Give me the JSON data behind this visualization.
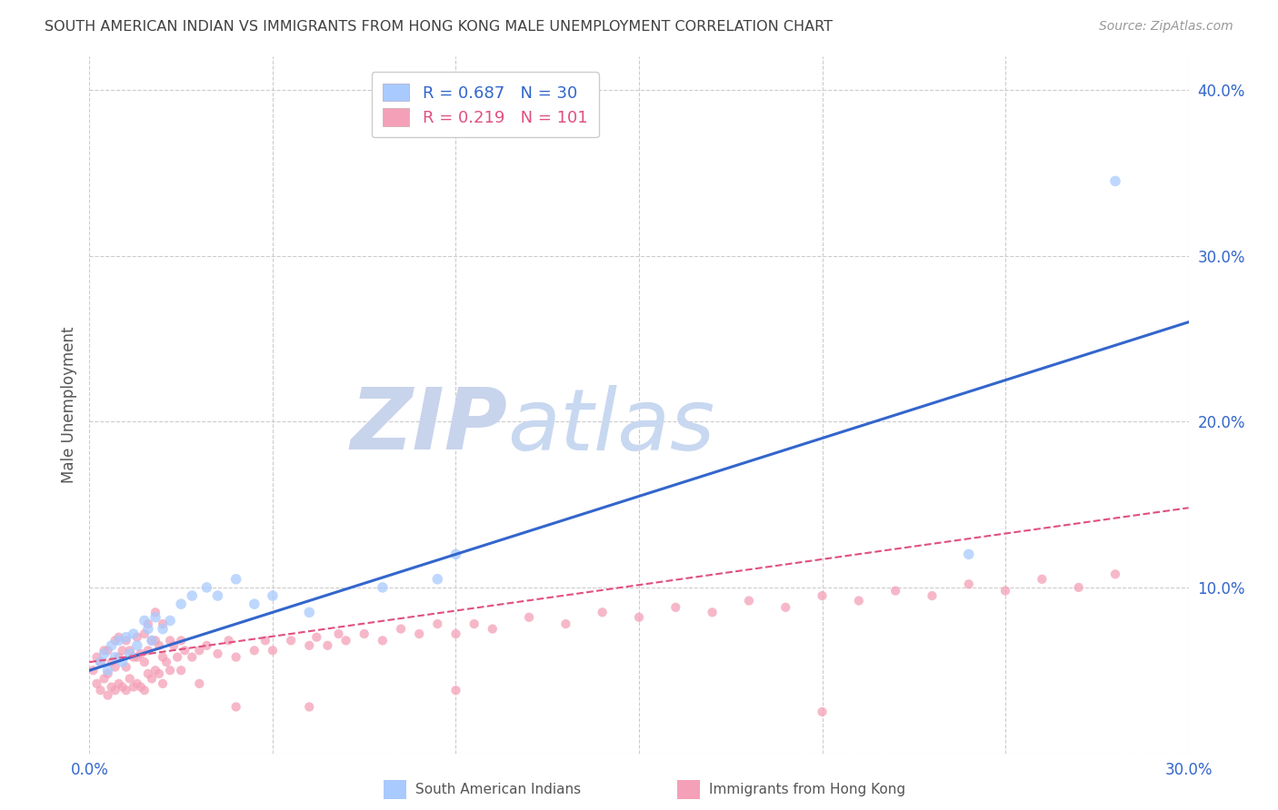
{
  "title": "SOUTH AMERICAN INDIAN VS IMMIGRANTS FROM HONG KONG MALE UNEMPLOYMENT CORRELATION CHART",
  "source": "Source: ZipAtlas.com",
  "ylabel": "Male Unemployment",
  "xlim": [
    0,
    0.3
  ],
  "ylim": [
    0,
    0.42
  ],
  "xticks": [
    0.0,
    0.05,
    0.1,
    0.15,
    0.2,
    0.25,
    0.3
  ],
  "xtick_labels": [
    "0.0%",
    "",
    "",
    "",
    "",
    "",
    "30.0%"
  ],
  "yticks_right": [
    0.0,
    0.1,
    0.2,
    0.3,
    0.4
  ],
  "ytick_labels_right": [
    "",
    "10.0%",
    "20.0%",
    "30.0%",
    "40.0%"
  ],
  "blue_R": "0.687",
  "blue_N": "30",
  "pink_R": "0.219",
  "pink_N": "101",
  "blue_color": "#A8CAFE",
  "pink_color": "#F4A0B8",
  "blue_line_color": "#3366CC",
  "pink_line_color": "#E05080",
  "watermark_zip": "ZIP",
  "watermark_atlas": "atlas",
  "watermark_color": "#D0DCF0",
  "legend_label_blue": "South American Indians",
  "legend_label_pink": "Immigrants from Hong Kong",
  "blue_scatter_x": [
    0.003,
    0.004,
    0.005,
    0.006,
    0.007,
    0.008,
    0.009,
    0.01,
    0.011,
    0.012,
    0.013,
    0.015,
    0.016,
    0.017,
    0.018,
    0.02,
    0.022,
    0.025,
    0.028,
    0.032,
    0.035,
    0.04,
    0.045,
    0.05,
    0.06,
    0.08,
    0.095,
    0.1,
    0.24,
    0.28
  ],
  "blue_scatter_y": [
    0.055,
    0.06,
    0.05,
    0.065,
    0.058,
    0.068,
    0.055,
    0.07,
    0.06,
    0.072,
    0.065,
    0.08,
    0.075,
    0.068,
    0.082,
    0.075,
    0.08,
    0.09,
    0.095,
    0.1,
    0.095,
    0.105,
    0.09,
    0.095,
    0.085,
    0.1,
    0.105,
    0.12,
    0.12,
    0.345
  ],
  "pink_scatter_x": [
    0.001,
    0.002,
    0.002,
    0.003,
    0.003,
    0.004,
    0.004,
    0.005,
    0.005,
    0.005,
    0.006,
    0.006,
    0.007,
    0.007,
    0.007,
    0.008,
    0.008,
    0.008,
    0.009,
    0.009,
    0.01,
    0.01,
    0.01,
    0.011,
    0.011,
    0.012,
    0.012,
    0.013,
    0.013,
    0.013,
    0.014,
    0.014,
    0.015,
    0.015,
    0.015,
    0.016,
    0.016,
    0.016,
    0.017,
    0.017,
    0.018,
    0.018,
    0.018,
    0.019,
    0.019,
    0.02,
    0.02,
    0.02,
    0.021,
    0.022,
    0.022,
    0.023,
    0.024,
    0.025,
    0.025,
    0.026,
    0.028,
    0.03,
    0.032,
    0.035,
    0.038,
    0.04,
    0.045,
    0.048,
    0.05,
    0.055,
    0.06,
    0.062,
    0.065,
    0.068,
    0.07,
    0.075,
    0.08,
    0.085,
    0.09,
    0.095,
    0.1,
    0.105,
    0.11,
    0.12,
    0.13,
    0.14,
    0.15,
    0.16,
    0.17,
    0.18,
    0.19,
    0.2,
    0.21,
    0.22,
    0.23,
    0.24,
    0.25,
    0.26,
    0.27,
    0.28,
    0.03,
    0.04,
    0.06,
    0.1,
    0.2
  ],
  "pink_scatter_y": [
    0.05,
    0.042,
    0.058,
    0.038,
    0.055,
    0.045,
    0.062,
    0.035,
    0.048,
    0.062,
    0.04,
    0.055,
    0.038,
    0.052,
    0.068,
    0.042,
    0.058,
    0.07,
    0.04,
    0.062,
    0.038,
    0.052,
    0.068,
    0.045,
    0.062,
    0.04,
    0.058,
    0.042,
    0.058,
    0.07,
    0.04,
    0.06,
    0.038,
    0.055,
    0.072,
    0.048,
    0.062,
    0.078,
    0.045,
    0.068,
    0.05,
    0.068,
    0.085,
    0.048,
    0.065,
    0.042,
    0.058,
    0.078,
    0.055,
    0.05,
    0.068,
    0.065,
    0.058,
    0.05,
    0.068,
    0.062,
    0.058,
    0.062,
    0.065,
    0.06,
    0.068,
    0.058,
    0.062,
    0.068,
    0.062,
    0.068,
    0.065,
    0.07,
    0.065,
    0.072,
    0.068,
    0.072,
    0.068,
    0.075,
    0.072,
    0.078,
    0.072,
    0.078,
    0.075,
    0.082,
    0.078,
    0.085,
    0.082,
    0.088,
    0.085,
    0.092,
    0.088,
    0.095,
    0.092,
    0.098,
    0.095,
    0.102,
    0.098,
    0.105,
    0.1,
    0.108,
    0.042,
    0.028,
    0.028,
    0.038,
    0.025
  ],
  "blue_line_x": [
    0.0,
    0.3
  ],
  "blue_line_y": [
    0.05,
    0.26
  ],
  "pink_line_x": [
    0.0,
    0.3
  ],
  "pink_line_y": [
    0.055,
    0.148
  ],
  "background_color": "#FFFFFF",
  "grid_color": "#CCCCCC",
  "title_color": "#404040",
  "axis_label_color": "#555555",
  "tick_color": "#3366CC"
}
